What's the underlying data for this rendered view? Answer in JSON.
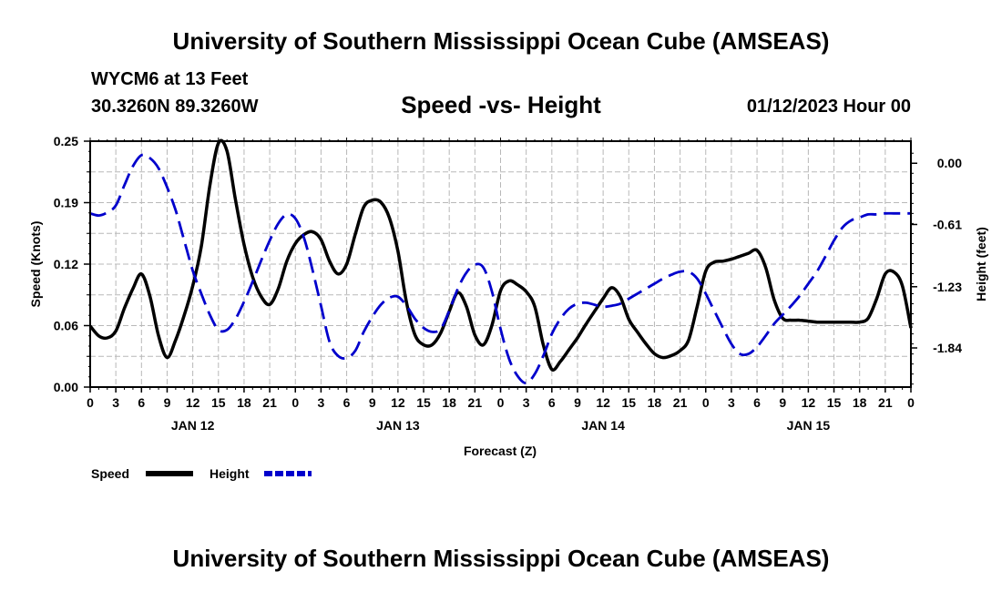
{
  "header": {
    "main_title": "University of Southern Mississippi Ocean Cube (AMSEAS)",
    "station": "WYCM6 at 13 Feet",
    "coords": "30.3260N  89.3260W",
    "subtitle": "Speed -vs- Height",
    "datetime": "01/12/2023 Hour 00"
  },
  "footer": {
    "main_title": "University of Southern Mississippi Ocean Cube (AMSEAS)"
  },
  "chart_data": {
    "type": "line",
    "title": "Speed -vs- Height",
    "xlabel": "Forecast (Z)",
    "ylabel_left": "Speed (Knots)",
    "ylabel_right": "Height (feet)",
    "x_range_hours": [
      0,
      96
    ],
    "y_left_range": [
      0,
      0.25
    ],
    "y_right_range": [
      -2.23,
      0.22
    ],
    "y_left_ticks": [
      "0.00",
      "0.06",
      "0.12",
      "0.19",
      "0.25"
    ],
    "y_left_tick_values": [
      0,
      0.0625,
      0.125,
      0.1875,
      0.25
    ],
    "y_right_ticks": [
      "0.00",
      "-0.61",
      "-1.23",
      "-1.84"
    ],
    "y_right_tick_values": [
      0,
      -0.61,
      -1.23,
      -1.84
    ],
    "x_tick_labels": [
      "0",
      "3",
      "6",
      "9",
      "12",
      "15",
      "18",
      "21",
      "0",
      "3",
      "6",
      "9",
      "12",
      "15",
      "18",
      "21",
      "0",
      "3",
      "6",
      "9",
      "12",
      "15",
      "18",
      "21",
      "0",
      "3",
      "6",
      "9",
      "12",
      "15",
      "18",
      "21",
      "0"
    ],
    "date_labels": [
      {
        "label": "JAN 12",
        "hour": 12
      },
      {
        "label": "JAN 13",
        "hour": 36
      },
      {
        "label": "JAN 14",
        "hour": 60
      },
      {
        "label": "JAN 15",
        "hour": 84
      }
    ],
    "legend": [
      {
        "name": "Speed",
        "style": "solid",
        "color": "#000000"
      },
      {
        "name": "Height",
        "style": "dashed",
        "color": "#0000cc"
      }
    ],
    "series": [
      {
        "name": "Speed",
        "axis": "left",
        "color": "#000000",
        "x": [
          0,
          1,
          2,
          3,
          4,
          5,
          6,
          7,
          8,
          9,
          10,
          11,
          12,
          13,
          14,
          15,
          16,
          17,
          18,
          19,
          20,
          21,
          22,
          23,
          24,
          25,
          26,
          27,
          28,
          29,
          30,
          31,
          32,
          33,
          34,
          35,
          36,
          37,
          38,
          39,
          40,
          41,
          42,
          43,
          44,
          45,
          46,
          47,
          48,
          49,
          50,
          51,
          52,
          53,
          54,
          55,
          56,
          57,
          58,
          59,
          60,
          61,
          62,
          63,
          64,
          65,
          66,
          67,
          68,
          69,
          70,
          71,
          72,
          73,
          74,
          75,
          76,
          77,
          78,
          79,
          80,
          81,
          82,
          83,
          84,
          85,
          86,
          87,
          88,
          89,
          90,
          91,
          92,
          93,
          94,
          95,
          96
        ],
        "values": [
          0.062,
          0.052,
          0.05,
          0.057,
          0.08,
          0.1,
          0.115,
          0.092,
          0.052,
          0.03,
          0.048,
          0.073,
          0.103,
          0.143,
          0.205,
          0.248,
          0.24,
          0.19,
          0.145,
          0.112,
          0.092,
          0.084,
          0.1,
          0.128,
          0.146,
          0.155,
          0.158,
          0.15,
          0.128,
          0.115,
          0.125,
          0.155,
          0.183,
          0.19,
          0.188,
          0.172,
          0.138,
          0.086,
          0.053,
          0.043,
          0.043,
          0.055,
          0.077,
          0.096,
          0.082,
          0.053,
          0.043,
          0.063,
          0.098,
          0.108,
          0.104,
          0.097,
          0.082,
          0.043,
          0.018,
          0.026,
          0.038,
          0.05,
          0.064,
          0.077,
          0.09,
          0.101,
          0.092,
          0.069,
          0.056,
          0.044,
          0.034,
          0.03,
          0.032,
          0.037,
          0.048,
          0.082,
          0.118,
          0.127,
          0.128,
          0.13,
          0.133,
          0.136,
          0.139,
          0.122,
          0.089,
          0.07,
          0.068,
          0.068,
          0.067,
          0.066,
          0.066,
          0.066,
          0.066,
          0.066,
          0.066,
          0.07,
          0.09,
          0.115,
          0.117,
          0.103,
          0.06
        ]
      },
      {
        "name": "Height",
        "axis": "right",
        "color": "#0000cc",
        "x": [
          0,
          1,
          2,
          3,
          4,
          5,
          6,
          7,
          8,
          9,
          10,
          11,
          12,
          13,
          14,
          15,
          16,
          17,
          18,
          19,
          20,
          21,
          22,
          23,
          24,
          25,
          26,
          27,
          28,
          29,
          30,
          31,
          32,
          33,
          34,
          35,
          36,
          37,
          38,
          39,
          40,
          41,
          42,
          43,
          44,
          45,
          46,
          47,
          48,
          49,
          50,
          51,
          52,
          53,
          54,
          55,
          56,
          57,
          58,
          59,
          60,
          61,
          62,
          63,
          64,
          65,
          66,
          67,
          68,
          69,
          70,
          71,
          72,
          73,
          74,
          75,
          76,
          77,
          78,
          79,
          80,
          81,
          82,
          83,
          84,
          85,
          86,
          87,
          88,
          89,
          90,
          91,
          92,
          93,
          94,
          95,
          96
        ],
        "values": [
          -0.5,
          -0.52,
          -0.49,
          -0.42,
          -0.22,
          -0.03,
          0.08,
          0.05,
          -0.05,
          -0.24,
          -0.47,
          -0.77,
          -1.07,
          -1.3,
          -1.51,
          -1.66,
          -1.66,
          -1.55,
          -1.38,
          -1.18,
          -0.97,
          -0.77,
          -0.6,
          -0.51,
          -0.55,
          -0.74,
          -1.06,
          -1.42,
          -1.78,
          -1.92,
          -1.94,
          -1.87,
          -1.68,
          -1.53,
          -1.41,
          -1.34,
          -1.33,
          -1.42,
          -1.55,
          -1.64,
          -1.68,
          -1.65,
          -1.47,
          -1.25,
          -1.09,
          -1.01,
          -1.04,
          -1.28,
          -1.65,
          -1.95,
          -2.12,
          -2.19,
          -2.1,
          -1.92,
          -1.7,
          -1.55,
          -1.45,
          -1.4,
          -1.39,
          -1.41,
          -1.43,
          -1.42,
          -1.4,
          -1.35,
          -1.3,
          -1.25,
          -1.2,
          -1.15,
          -1.11,
          -1.08,
          -1.08,
          -1.15,
          -1.3,
          -1.47,
          -1.64,
          -1.8,
          -1.9,
          -1.9,
          -1.83,
          -1.72,
          -1.6,
          -1.51,
          -1.42,
          -1.32,
          -1.2,
          -1.08,
          -0.93,
          -0.77,
          -0.64,
          -0.57,
          -0.54,
          -0.51,
          -0.51,
          -0.5,
          -0.5,
          -0.5,
          -0.5
        ]
      }
    ]
  }
}
